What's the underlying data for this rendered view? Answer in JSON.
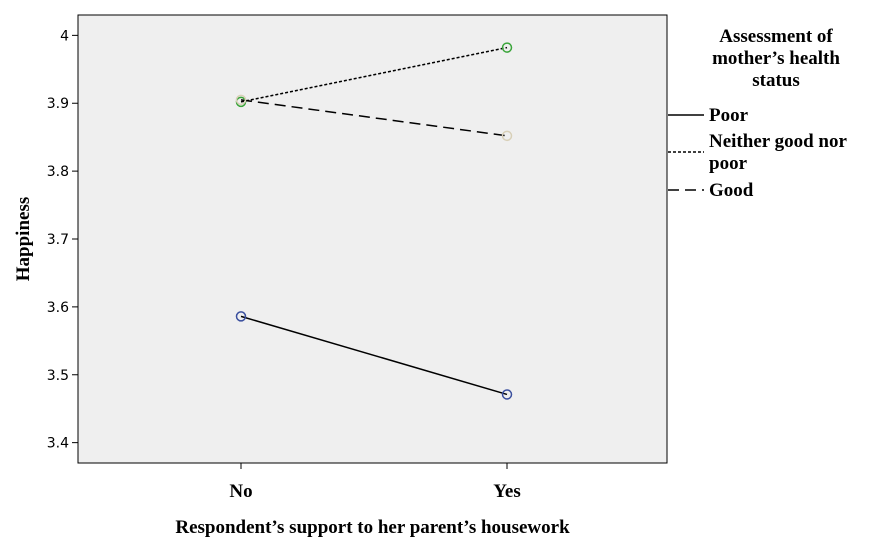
{
  "chart_data": {
    "type": "line",
    "xlabel": "Respondent’s support to her parent’s housework",
    "ylabel": "Happiness",
    "categories": [
      "No",
      "Yes"
    ],
    "ylim": [
      3.37,
      4.03
    ],
    "yticks": [
      "3.4",
      "3.5",
      "3.6",
      "3.7",
      "3.8",
      "3.9",
      "4"
    ],
    "grid": false,
    "legend": {
      "title_lines": [
        "Assessment of",
        "mother’s health",
        "status"
      ],
      "placement": "right"
    },
    "series": [
      {
        "name": "Poor",
        "name_lines": [
          "Poor"
        ],
        "values": [
          3.586,
          3.471
        ],
        "line_style": "solid",
        "marker_color": "#3a4f9e"
      },
      {
        "name": "Neither good nor poor",
        "name_lines": [
          "Neither good nor",
          "poor"
        ],
        "values": [
          3.902,
          3.982
        ],
        "line_style": "dotted",
        "marker_color": "#3aa53a"
      },
      {
        "name": "Good",
        "name_lines": [
          "Good"
        ],
        "values": [
          3.905,
          3.852
        ],
        "line_style": "dashed",
        "marker_color": "#d8d0b8"
      }
    ],
    "colors": {
      "plot_background": "#efefef",
      "line": "#000000"
    }
  }
}
